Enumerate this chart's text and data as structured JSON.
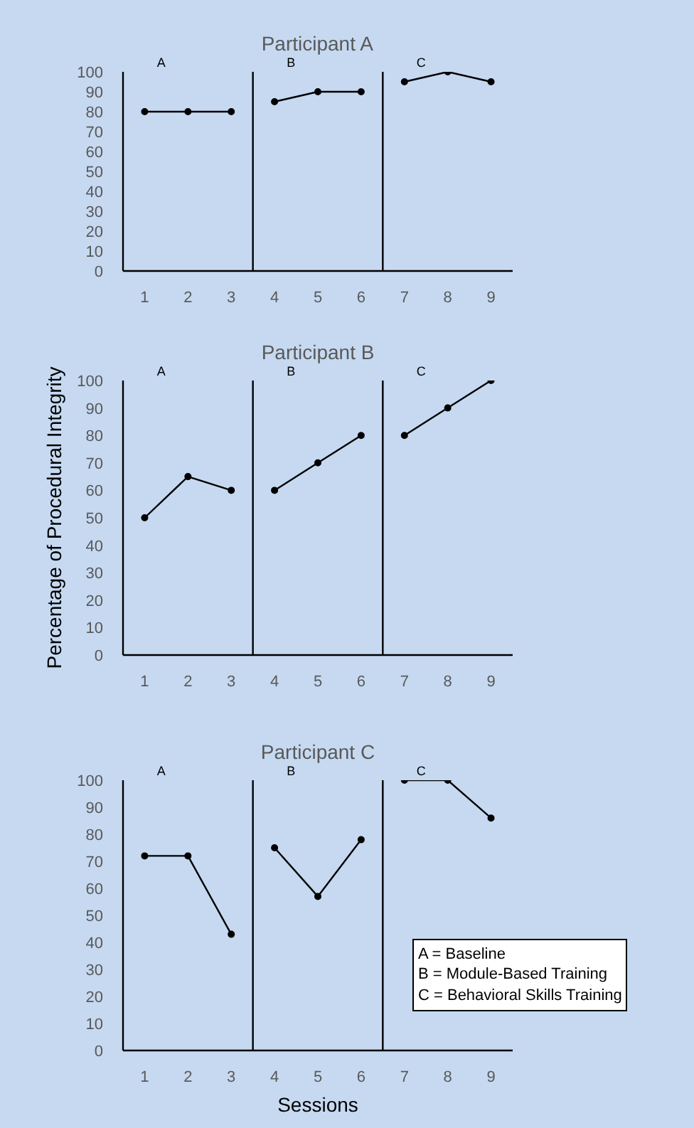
{
  "chart_data": [
    {
      "type": "line",
      "title": "Participant A",
      "xlim": [
        0.5,
        9.5
      ],
      "ylim": [
        0,
        100
      ],
      "xticks": [
        1,
        2,
        3,
        4,
        5,
        6,
        7,
        8,
        9
      ],
      "yticks": [
        0,
        10,
        20,
        30,
        40,
        50,
        60,
        70,
        80,
        90,
        100
      ],
      "grid": false,
      "marker": "circle",
      "line_style": "solid",
      "series": [
        {
          "color": "#000000",
          "x": [
            1,
            2,
            3
          ],
          "values": [
            80,
            80,
            80
          ]
        },
        {
          "color": "#000000",
          "x": [
            4,
            5,
            6
          ],
          "values": [
            85,
            90,
            90
          ]
        },
        {
          "color": "#000000",
          "x": [
            7,
            8,
            9
          ],
          "values": [
            95,
            100,
            95
          ]
        }
      ],
      "ref_lines": [
        {
          "axis": "x",
          "value": 3.5,
          "color": "#000000"
        },
        {
          "axis": "x",
          "value": 6.5,
          "color": "#000000"
        }
      ],
      "annotations": [
        "A",
        "B",
        "C"
      ]
    },
    {
      "type": "line",
      "title": "Participant B",
      "ylabel": "Percentage of Procedural Integrity",
      "xlim": [
        0.5,
        9.5
      ],
      "ylim": [
        0,
        100
      ],
      "xticks": [
        1,
        2,
        3,
        4,
        5,
        6,
        7,
        8,
        9
      ],
      "yticks": [
        0,
        10,
        20,
        30,
        40,
        50,
        60,
        70,
        80,
        90,
        100
      ],
      "grid": false,
      "marker": "circle",
      "line_style": "solid",
      "series": [
        {
          "color": "#000000",
          "x": [
            1,
            2,
            3
          ],
          "values": [
            50,
            65,
            60
          ]
        },
        {
          "color": "#000000",
          "x": [
            4,
            5,
            6
          ],
          "values": [
            60,
            70,
            80
          ]
        },
        {
          "color": "#000000",
          "x": [
            7,
            8,
            9
          ],
          "values": [
            80,
            90,
            100
          ]
        }
      ],
      "ref_lines": [
        {
          "axis": "x",
          "value": 3.5,
          "color": "#000000"
        },
        {
          "axis": "x",
          "value": 6.5,
          "color": "#000000"
        }
      ],
      "annotations": [
        "A",
        "B",
        "C"
      ]
    },
    {
      "type": "line",
      "title": "Participant C",
      "xlabel": "Sessions",
      "xlim": [
        0.5,
        9.5
      ],
      "ylim": [
        0,
        100
      ],
      "xticks": [
        1,
        2,
        3,
        4,
        5,
        6,
        7,
        8,
        9
      ],
      "yticks": [
        0,
        10,
        20,
        30,
        40,
        50,
        60,
        70,
        80,
        90,
        100
      ],
      "grid": false,
      "marker": "circle",
      "line_style": "solid",
      "series": [
        {
          "color": "#000000",
          "x": [
            1,
            2,
            3
          ],
          "values": [
            72,
            72,
            43
          ]
        },
        {
          "color": "#000000",
          "x": [
            4,
            5,
            6
          ],
          "values": [
            75,
            57,
            78
          ]
        },
        {
          "color": "#000000",
          "x": [
            7,
            8,
            9
          ],
          "values": [
            100,
            100,
            86
          ]
        }
      ],
      "ref_lines": [
        {
          "axis": "x",
          "value": 3.5,
          "color": "#000000"
        },
        {
          "axis": "x",
          "value": 6.5,
          "color": "#000000"
        }
      ],
      "annotations": [
        "A",
        "B",
        "C",
        "A = Baseline",
        "B = Module-Based Training",
        "C = Behavioral Skills Training"
      ]
    }
  ]
}
